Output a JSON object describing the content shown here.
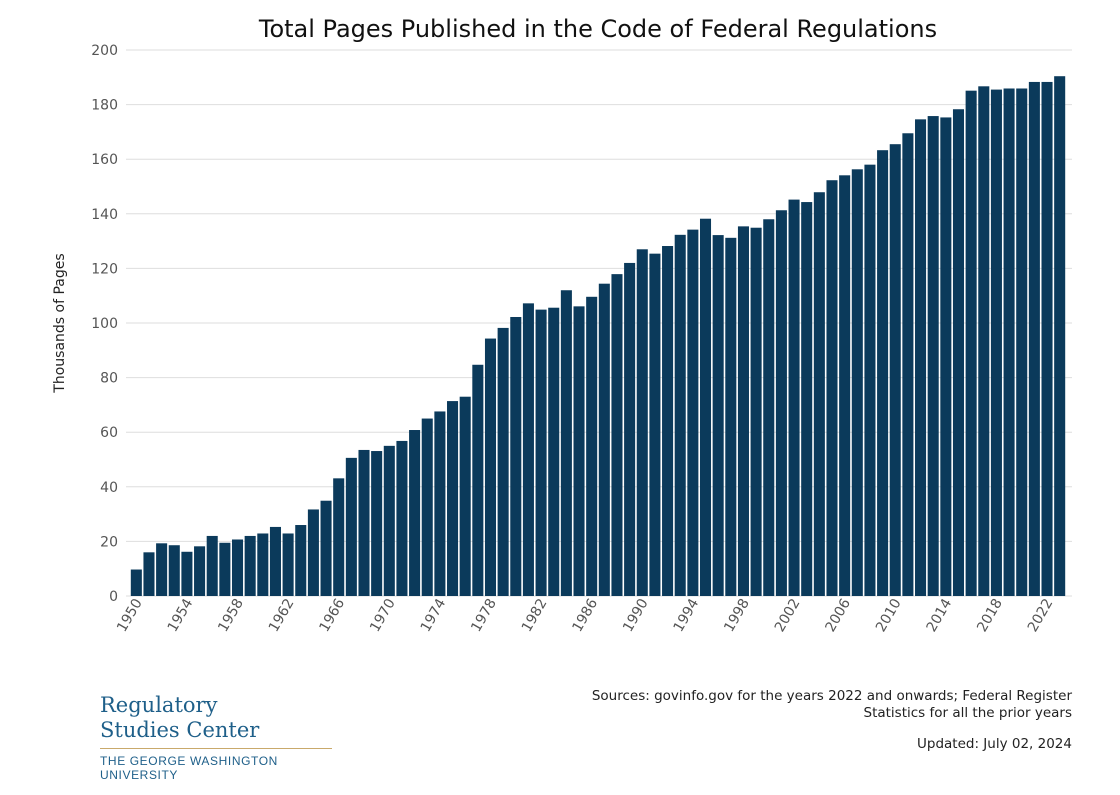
{
  "chart_data": {
    "type": "bar",
    "title": "Total Pages Published in the Code of Federal Regulations",
    "ylabel": "Thousands of Pages",
    "xlabel": "",
    "ylim": [
      0,
      200
    ],
    "yticks": [
      0,
      20,
      40,
      60,
      80,
      100,
      120,
      140,
      160,
      180,
      200
    ],
    "xtick_labels": [
      "1950",
      "1954",
      "1958",
      "1962",
      "1966",
      "1970",
      "1974",
      "1978",
      "1982",
      "1986",
      "1990",
      "1994",
      "1998",
      "2002",
      "2006",
      "2010",
      "2014",
      "2018",
      "2022"
    ],
    "grid": true,
    "bar_color": "#0b3a5b",
    "categories": [
      1950,
      1951,
      1952,
      1953,
      1954,
      1955,
      1956,
      1957,
      1958,
      1959,
      1960,
      1961,
      1962,
      1963,
      1964,
      1965,
      1966,
      1967,
      1968,
      1969,
      1970,
      1971,
      1972,
      1973,
      1974,
      1975,
      1976,
      1977,
      1978,
      1979,
      1980,
      1981,
      1982,
      1983,
      1984,
      1985,
      1986,
      1987,
      1988,
      1989,
      1990,
      1991,
      1992,
      1993,
      1994,
      1995,
      1996,
      1997,
      1998,
      1999,
      2000,
      2001,
      2002,
      2003,
      2004,
      2005,
      2006,
      2007,
      2008,
      2009,
      2010,
      2011,
      2012,
      2013,
      2014,
      2015,
      2016,
      2017,
      2018,
      2019,
      2020,
      2021,
      2022,
      2023
    ],
    "values": [
      9.7,
      16.0,
      19.3,
      18.6,
      16.2,
      18.2,
      22.0,
      19.5,
      20.7,
      22.0,
      22.9,
      25.3,
      22.9,
      26.0,
      31.7,
      34.9,
      43.1,
      50.6,
      53.5,
      53.1,
      55.0,
      56.8,
      60.8,
      65.0,
      67.6,
      71.4,
      73.0,
      84.7,
      94.3,
      98.2,
      102.2,
      107.2,
      104.9,
      105.6,
      112.0,
      106.1,
      109.6,
      114.4,
      117.9,
      122.0,
      127.0,
      125.4,
      128.2,
      132.3,
      134.2,
      138.2,
      132.2,
      131.2,
      135.4,
      134.9,
      138.0,
      141.3,
      145.2,
      144.3,
      147.9,
      152.3,
      154.1,
      156.3,
      158.0,
      163.3,
      165.5,
      169.5,
      174.6,
      175.8,
      175.3,
      178.3,
      185.1,
      186.7,
      185.5,
      185.9,
      185.9,
      188.3,
      188.3,
      190.4
    ]
  },
  "footer": {
    "sources": "Sources: govinfo.gov for the years 2022 and onwards; Federal Register Statistics for all the prior years",
    "updated": "Updated: July 02, 2024",
    "logo": {
      "line1": "Regulatory",
      "line2": "Studies Center",
      "university": "THE GEORGE WASHINGTON UNIVERSITY"
    }
  }
}
